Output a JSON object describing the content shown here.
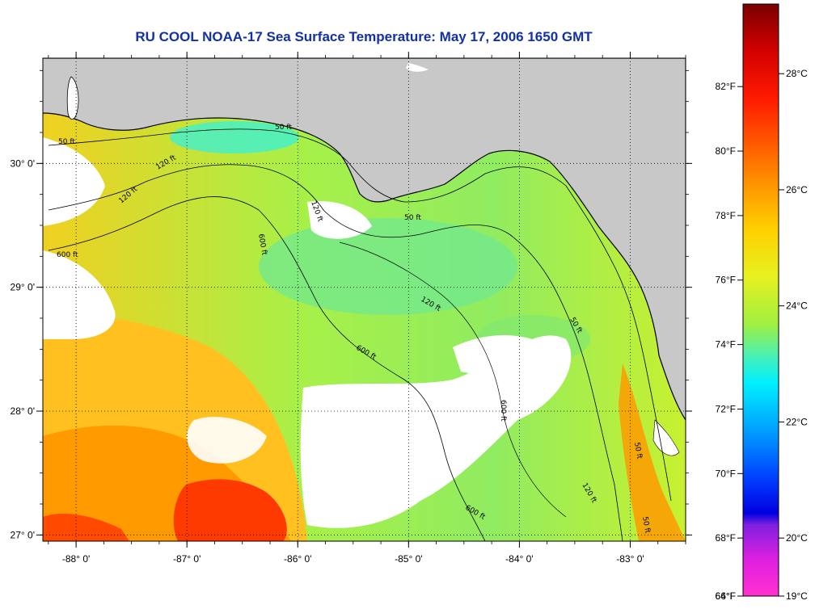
{
  "title": "RU COOL  NOAA-17  Sea Surface Temperature:  May 17, 2006 1650 GMT",
  "map": {
    "lon_range": [
      -88.3,
      -82.5
    ],
    "lat_range": [
      26.95,
      30.85
    ],
    "x_ticks": [
      {
        "value": -88,
        "label": "-88° 0'"
      },
      {
        "value": -87,
        "label": "-87° 0'"
      },
      {
        "value": -86,
        "label": "-86° 0'"
      },
      {
        "value": -85,
        "label": "-85° 0'"
      },
      {
        "value": -84,
        "label": "-84° 0'"
      },
      {
        "value": -83,
        "label": "-83° 0'"
      }
    ],
    "y_ticks": [
      {
        "value": 30,
        "label": "30° 0'"
      },
      {
        "value": 29,
        "label": "29° 0'"
      },
      {
        "value": 28,
        "label": "28° 0'"
      },
      {
        "value": 27,
        "label": "27° 0'"
      }
    ],
    "contour_labels": [
      "50 ft",
      "50 ft",
      "50 ft",
      "120 ft",
      "120 ft",
      "120 ft",
      "600 ft",
      "600 ft",
      "600 ft",
      "600 ft",
      "120 ft",
      "50 ft",
      "50 ft",
      "50 ft",
      "120 ft",
      "600 ft"
    ],
    "colors": {
      "land": "#c8c8c8",
      "cloud": "#ffffff",
      "warm": "#ff2a00",
      "orange": "#ffa000",
      "yellow": "#e8f020",
      "green": "#a0f040",
      "cyan": "#40f0d0"
    }
  },
  "colorbar": {
    "range_c": [
      19,
      29.2
    ],
    "fahrenheit_labels": [
      "82°F",
      "80°F",
      "78°F",
      "76°F",
      "74°F",
      "72°F",
      "70°F",
      "68°F",
      "66°F",
      "64°F"
    ],
    "fahrenheit_values": [
      82,
      80,
      78,
      76,
      74,
      72,
      70,
      68,
      66,
      64
    ],
    "celsius_labels": [
      "28°C",
      "26°C",
      "24°C",
      "22°C",
      "20°C",
      "19°C"
    ],
    "celsius_values": [
      28,
      26,
      24,
      22,
      20,
      19
    ]
  }
}
